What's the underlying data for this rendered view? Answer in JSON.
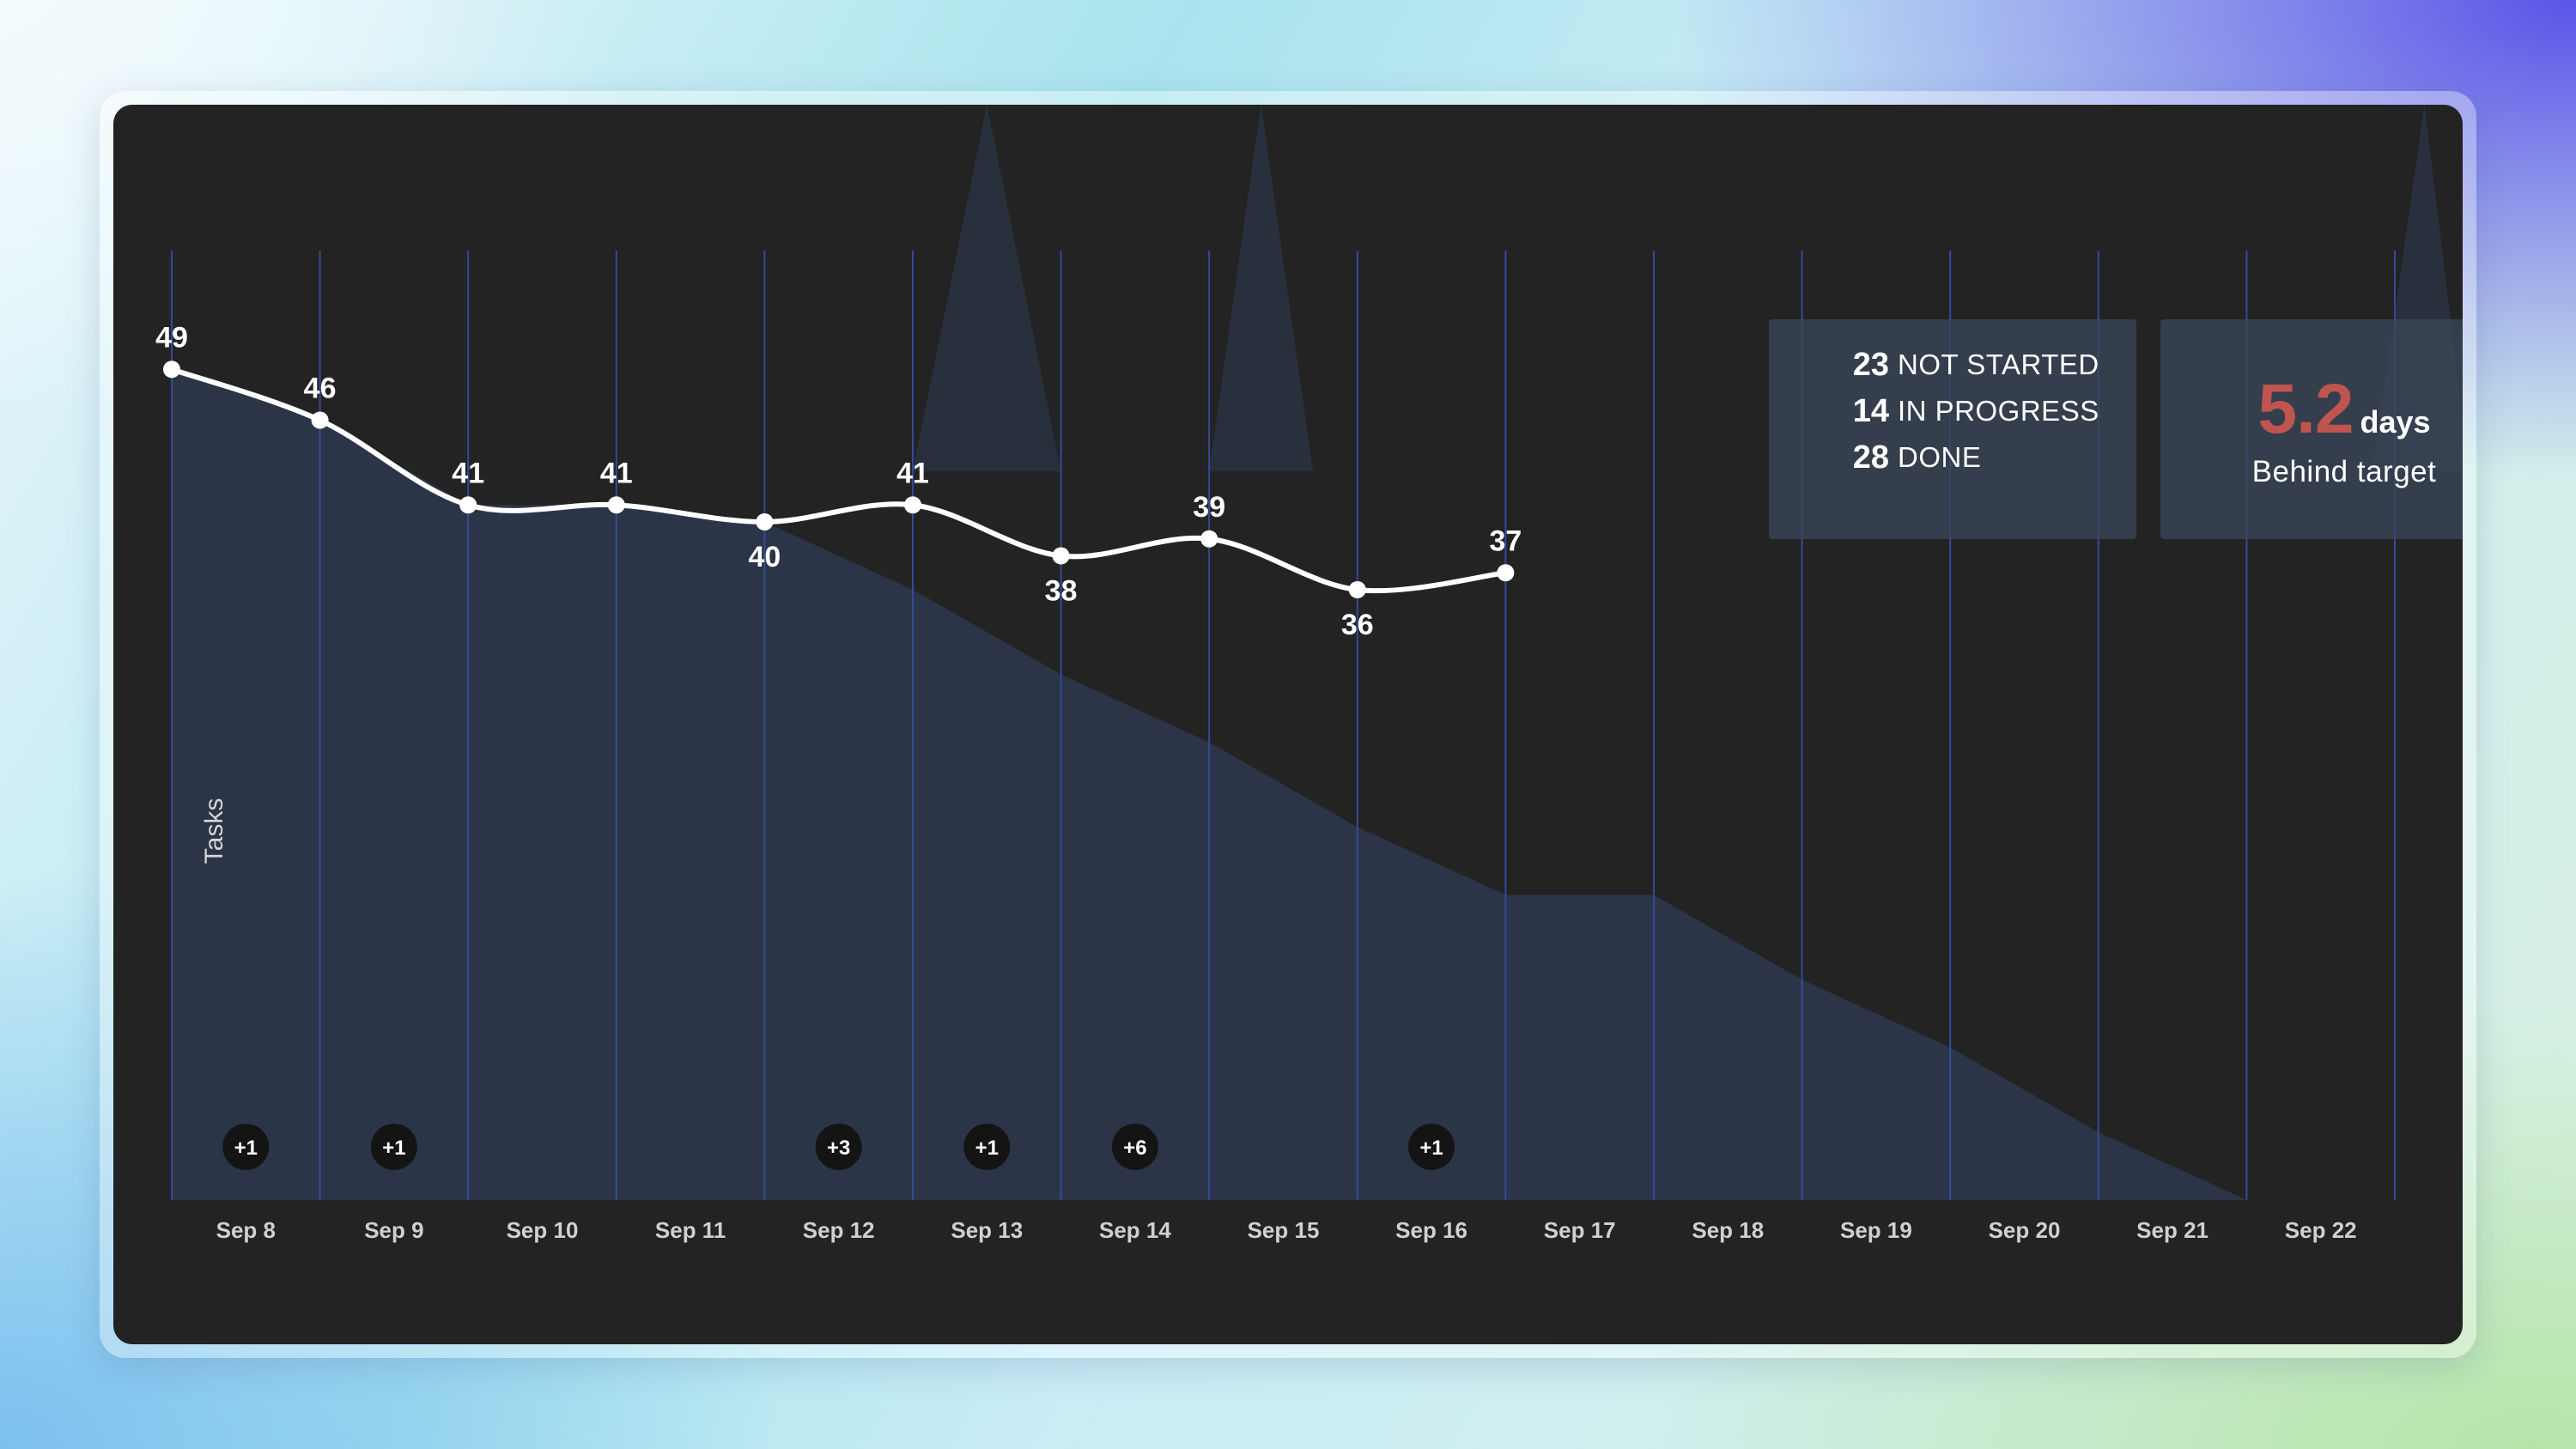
{
  "chart_data": {
    "type": "line",
    "ylabel": "Tasks",
    "categories": [
      "Sep 8",
      "Sep 9",
      "Sep 10",
      "Sep 11",
      "Sep 12",
      "Sep 13",
      "Sep 14",
      "Sep 15",
      "Sep 16",
      "Sep 17",
      "Sep 18",
      "Sep 19",
      "Sep 20",
      "Sep 21",
      "Sep 22"
    ],
    "ylim": [
      0,
      56
    ],
    "remaining": [
      49,
      46,
      41,
      41,
      40,
      41,
      38,
      39,
      36,
      37
    ],
    "target": [
      49,
      46,
      41,
      41,
      40,
      36,
      31,
      27,
      22,
      18,
      18,
      13,
      9,
      4,
      0
    ],
    "added": [
      {
        "date": "Sep 8",
        "label": "+1"
      },
      {
        "date": "Sep 9",
        "label": "+1"
      },
      {
        "date": "Sep 12",
        "label": "+3"
      },
      {
        "date": "Sep 13",
        "label": "+1"
      },
      {
        "date": "Sep 14",
        "label": "+6"
      },
      {
        "date": "Sep 16",
        "label": "+1"
      }
    ],
    "colors": {
      "target_area": "#2c3547",
      "line": "#ffffff",
      "gridline": "#344a9a",
      "badge": "#141414"
    }
  },
  "stats": [
    {
      "value": "23",
      "label": "NOT STARTED"
    },
    {
      "value": "14",
      "label": "IN PROGRESS"
    },
    {
      "value": "28",
      "label": "DONE"
    }
  ],
  "behind": {
    "value": "5.2",
    "unit": "days",
    "label": "Behind target",
    "color": "#c0544f"
  }
}
